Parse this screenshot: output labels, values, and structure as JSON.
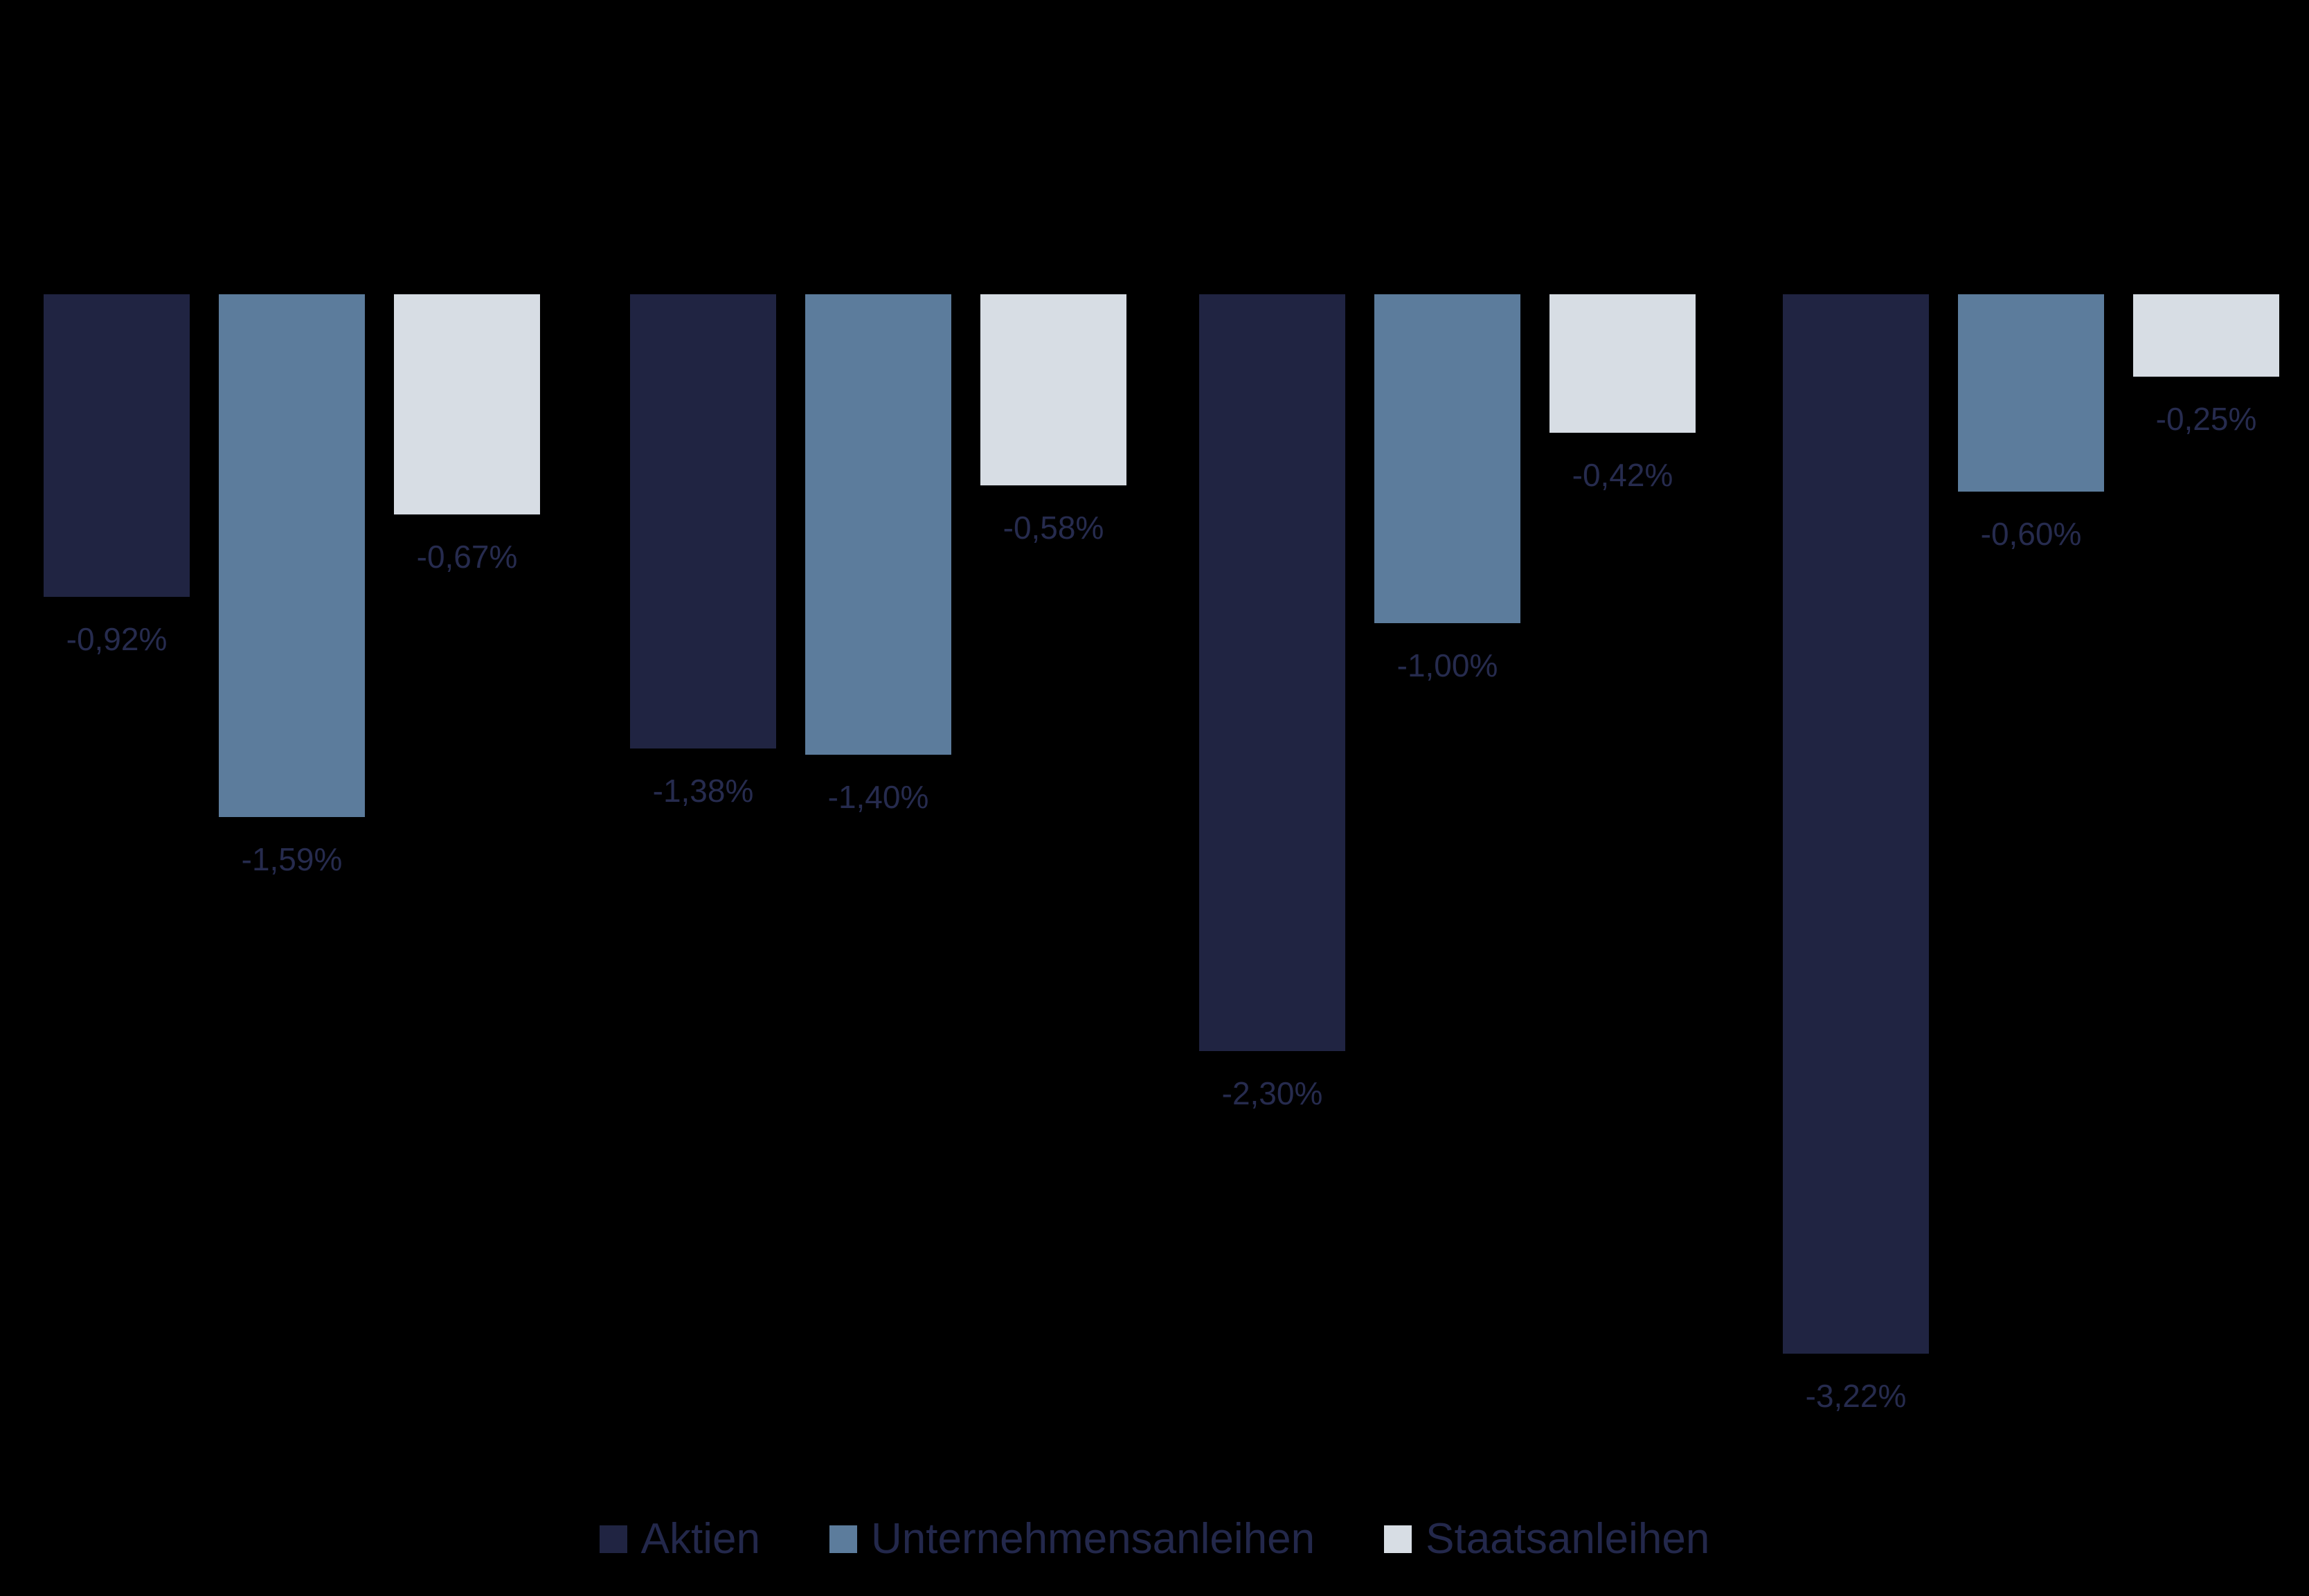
{
  "page": {
    "background_color": "#000000"
  },
  "chart_data": {
    "type": "bar",
    "title": "",
    "orientation": "vertical",
    "baseline_value": 0,
    "ylim": [
      -3.5,
      0
    ],
    "grid": false,
    "axes_visible": false,
    "categories": [
      "",
      "",
      "",
      ""
    ],
    "series": [
      {
        "name": "Aktien",
        "color": "#202442",
        "values": [
          -0.92,
          -1.38,
          -2.3,
          -3.22
        ],
        "labels": [
          "-0,92%",
          "-1,38%",
          "-2,30%",
          "-3,22%"
        ]
      },
      {
        "name": "Unternehmensanleihen",
        "color": "#5C7C9C",
        "values": [
          -1.59,
          -1.4,
          -1.0,
          -0.6
        ],
        "labels": [
          "-1,59%",
          "-1,40%",
          "-1,00%",
          "-0,60%"
        ]
      },
      {
        "name": "Staatsanleihen",
        "color": "#D7DDE4",
        "values": [
          -0.67,
          -0.58,
          -0.42,
          -0.25
        ],
        "labels": [
          "-0,67%",
          "-0,58%",
          "-0,42%",
          "-0,25%"
        ]
      }
    ],
    "value_label_color": "#262B4E",
    "legend": {
      "position": "bottom",
      "text_color": "#23284B",
      "entries": [
        "Aktien",
        "Unternehmensanleihen",
        "Staatsanleihen"
      ]
    }
  }
}
